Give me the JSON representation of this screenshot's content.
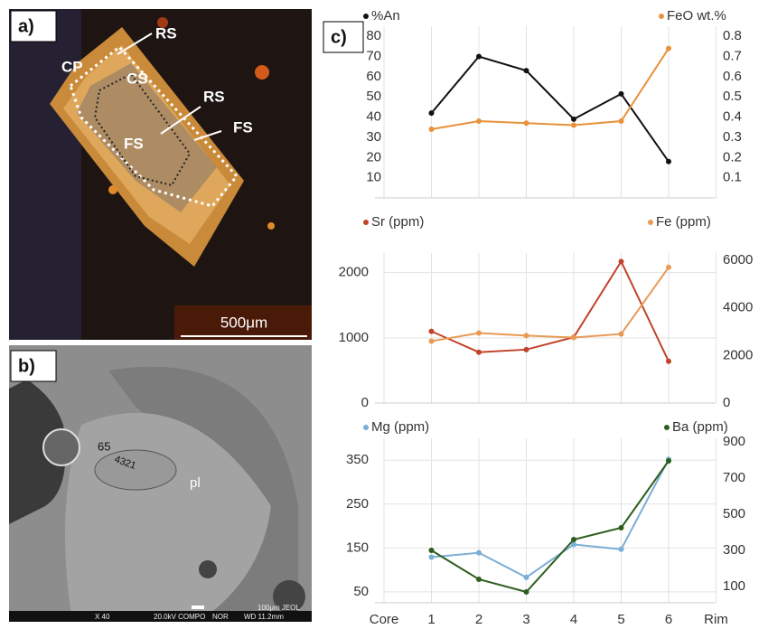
{
  "panels": {
    "a": {
      "label": "a)",
      "annotations": [
        "CP",
        "RS",
        "CS",
        "RS",
        "FS",
        "FS"
      ],
      "scale_bar": "500μm"
    },
    "b": {
      "label": "b)",
      "annotations": [
        "65",
        "4321",
        "pl"
      ],
      "footer": [
        "X 40",
        "20.0kV COMPO",
        "NOR",
        "WD 11.2mm",
        "100μm JEOL"
      ]
    },
    "c": {
      "label": "c)"
    }
  },
  "chart_data": [
    {
      "type": "line",
      "ylim": [
        0,
        85
      ],
      "yticks": [
        10,
        20,
        30,
        40,
        50,
        60,
        70,
        80
      ],
      "y2lim": [
        0,
        0.85
      ],
      "y2ticks": [
        0.1,
        0.2,
        0.3,
        0.4,
        0.5,
        0.6,
        0.7,
        0.8
      ],
      "series": [
        {
          "name": "%An",
          "color": "#111111",
          "values": [
            42,
            70,
            63,
            39,
            51.5,
            18
          ]
        },
        {
          "name": "FeO wt.%",
          "color": "#e8923a",
          "axis": "y2",
          "values": [
            0.34,
            0.38,
            0.37,
            0.36,
            0.38,
            0.74
          ]
        }
      ]
    },
    {
      "type": "line",
      "ylim": [
        0,
        2300
      ],
      "yticks": [
        0,
        1000,
        2000
      ],
      "y2lim": [
        0,
        6300
      ],
      "y2ticks": [
        0,
        2000,
        4000,
        6000
      ],
      "grid": true,
      "series": [
        {
          "name": "Sr (ppm)",
          "color": "#c0442a",
          "values": [
            1100,
            780,
            820,
            1010,
            2170,
            640
          ]
        },
        {
          "name": "Fe (ppm)",
          "color": "#e89a55",
          "axis": "y2",
          "values": [
            2600,
            2940,
            2830,
            2750,
            2900,
            5700
          ]
        }
      ]
    },
    {
      "type": "line",
      "categories": [
        "Core",
        "1",
        "2",
        "3",
        "4",
        "5",
        "6",
        "Rim"
      ],
      "ylim": [
        25,
        400
      ],
      "yticks": [
        50,
        150,
        250,
        350
      ],
      "y2lim": [
        10,
        920
      ],
      "y2ticks": [
        100,
        300,
        500,
        700,
        900
      ],
      "grid": true,
      "series": [
        {
          "name": "Mg (ppm)",
          "color": "#7aaed6",
          "values": [
            null,
            129,
            139,
            83,
            158,
            147,
            352,
            null
          ]
        },
        {
          "name": "Ba (ppm)",
          "color": "#2e5e1e",
          "axis": "y2",
          "values": [
            null,
            300,
            140,
            70,
            360,
            425,
            795,
            null
          ]
        }
      ]
    }
  ]
}
